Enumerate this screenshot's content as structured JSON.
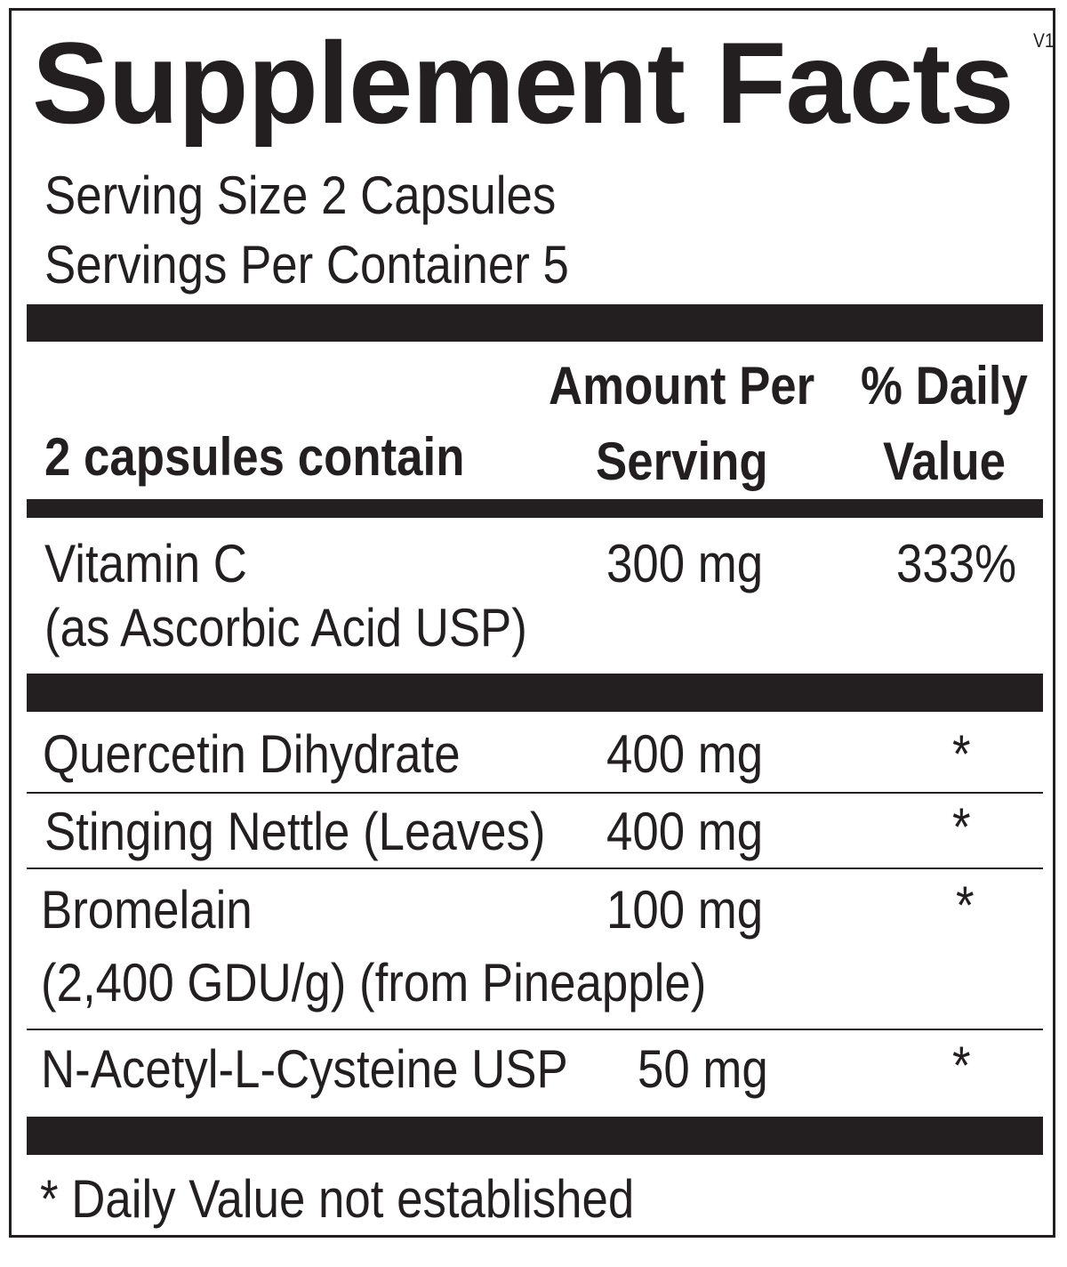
{
  "title": "Supplement Facts",
  "version": "V1",
  "serving_size": "Serving Size 2 Capsules",
  "servings_per_container": "Servings Per Container 5",
  "header": {
    "contain": "2 capsules contain",
    "amount_line1": "Amount Per",
    "amount_line2": "Serving",
    "dv_line1": "% Daily",
    "dv_line2": "Value"
  },
  "rows": [
    {
      "name": "Vitamin C",
      "subname": "(as Ascorbic Acid USP)",
      "amount": "300 mg",
      "dv": "333%"
    },
    {
      "name": "Quercetin Dihydrate",
      "amount": "400 mg",
      "dv": "*"
    },
    {
      "name": "Stinging Nettle (Leaves)",
      "amount": "400 mg",
      "dv": "*"
    },
    {
      "name": "Bromelain",
      "subname": "(2,400 GDU/g) (from Pineapple)",
      "amount": "100 mg",
      "dv": "*"
    },
    {
      "name": "N-Acetyl-L-Cysteine USP",
      "amount": "50 mg",
      "dv": "*"
    }
  ],
  "footnote": "* Daily Value not established",
  "colors": {
    "ink": "#231f20",
    "background": "#ffffff"
  }
}
